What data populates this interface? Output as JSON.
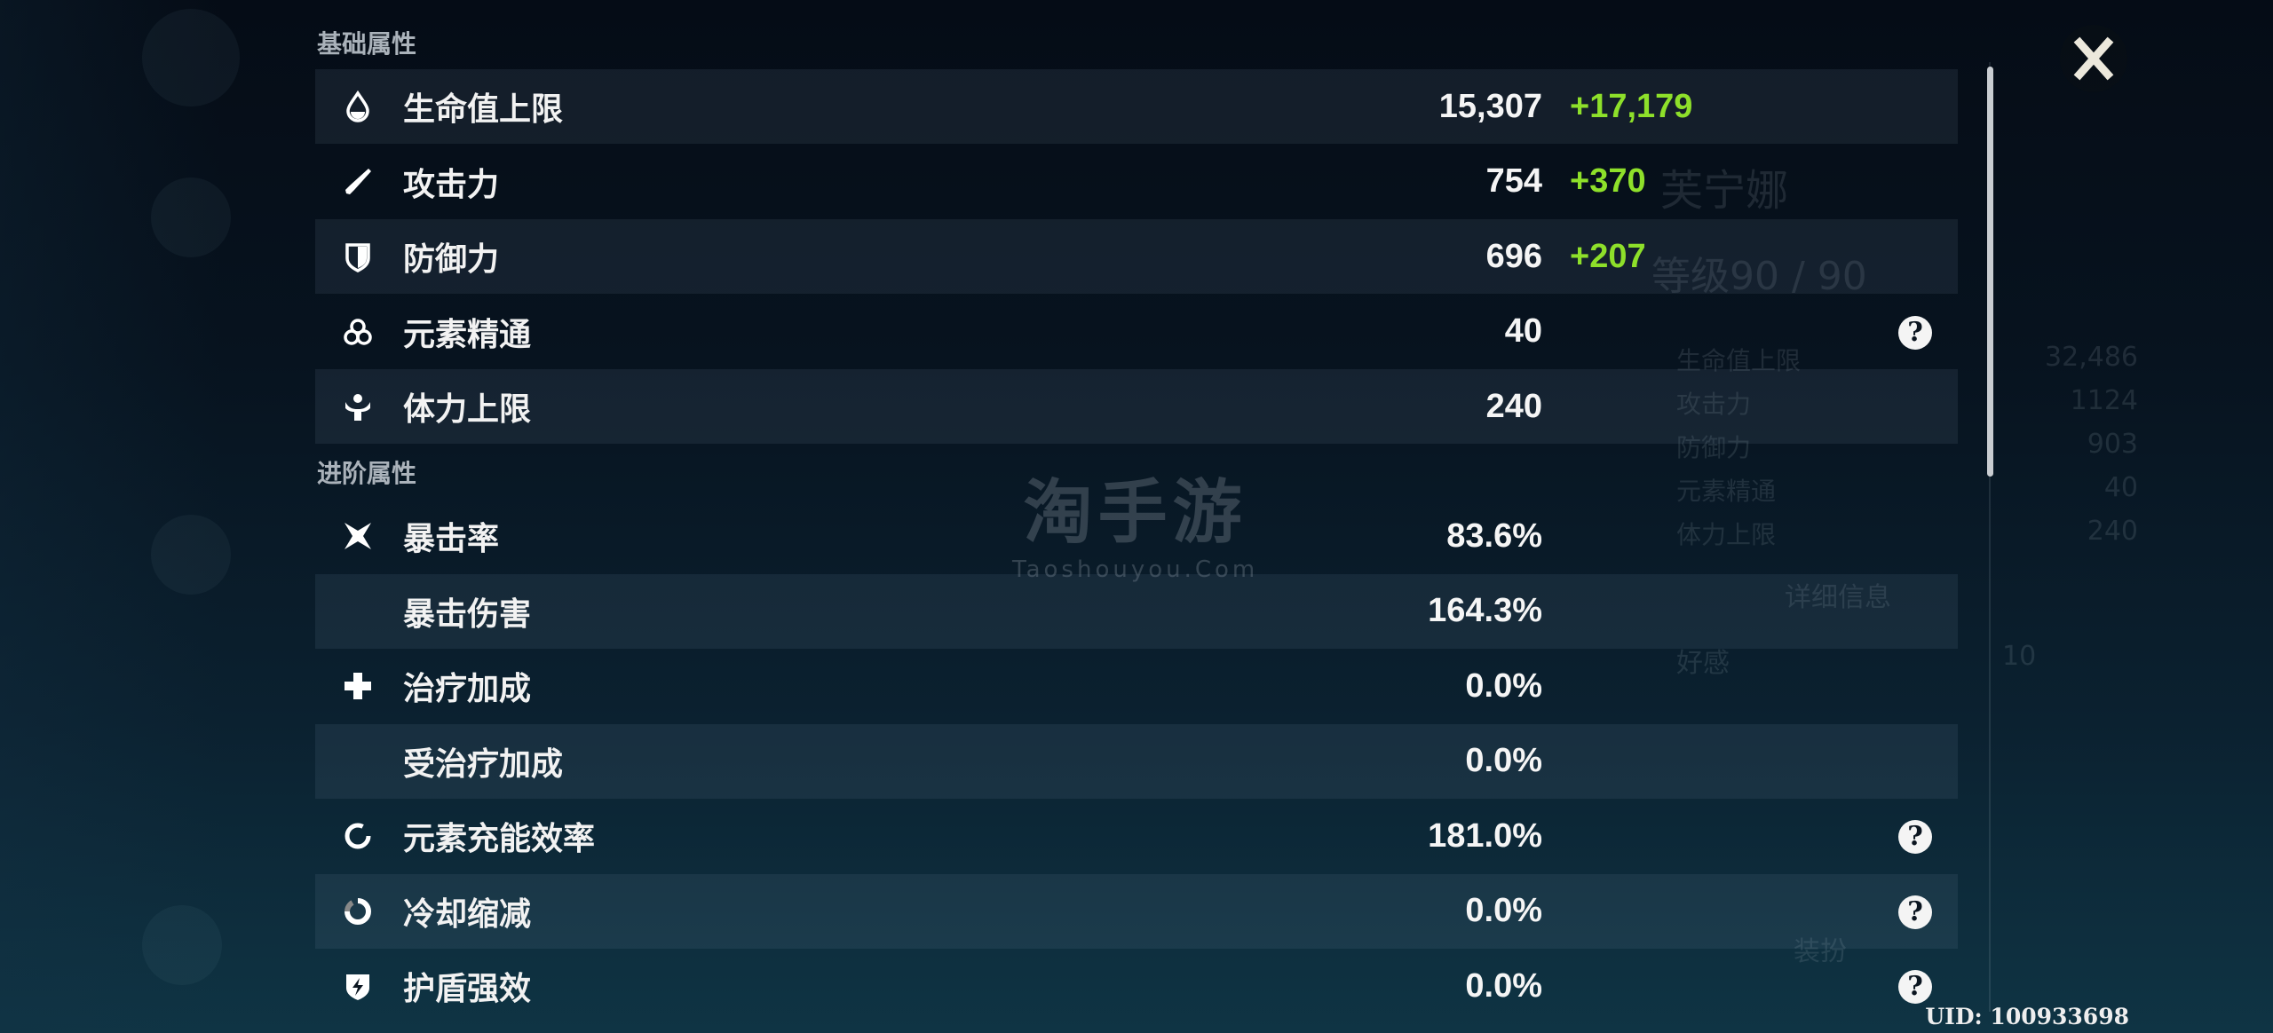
{
  "colors": {
    "bonus": "#8ee02a",
    "text": "#f2f2f2",
    "section": "#aab2ba",
    "background": "#07131f"
  },
  "watermark": {
    "cn": "淘手游",
    "en": "Taoshouyou.Com"
  },
  "background_panel": {
    "name": "芙宁娜",
    "level": "等级90 / 90",
    "stats": [
      {
        "label": "生命值上限",
        "value": "32,486"
      },
      {
        "label": "攻击力",
        "value": "1124"
      },
      {
        "label": "防御力",
        "value": "903"
      },
      {
        "label": "元素精通",
        "value": "40"
      },
      {
        "label": "体力上限",
        "value": "240"
      }
    ],
    "details_button": "详细信息",
    "friendship_label": "好感",
    "friendship_value": "10",
    "outfit_button": "装扮"
  },
  "sections": [
    {
      "title": "基础属性",
      "rows": [
        {
          "icon": "hp-drop-icon",
          "label": "生命值上限",
          "value": "15,307",
          "bonus": "+17,179",
          "help": false
        },
        {
          "icon": "sword-icon",
          "label": "攻击力",
          "value": "754",
          "bonus": "+370",
          "help": false
        },
        {
          "icon": "shield-icon",
          "label": "防御力",
          "value": "696",
          "bonus": "+207",
          "help": false
        },
        {
          "icon": "elemental-mastery-icon",
          "label": "元素精通",
          "value": "40",
          "bonus": "",
          "help": true
        },
        {
          "icon": "stamina-icon",
          "label": "体力上限",
          "value": "240",
          "bonus": "",
          "help": false
        }
      ]
    },
    {
      "title": "进阶属性",
      "rows": [
        {
          "icon": "crit-star-icon",
          "label": "暴击率",
          "value": "83.6%",
          "bonus": "",
          "help": false
        },
        {
          "icon": "",
          "label": "暴击伤害",
          "value": "164.3%",
          "bonus": "",
          "help": false
        },
        {
          "icon": "heal-cross-icon",
          "label": "治疗加成",
          "value": "0.0%",
          "bonus": "",
          "help": false
        },
        {
          "icon": "",
          "label": "受治疗加成",
          "value": "0.0%",
          "bonus": "",
          "help": false
        },
        {
          "icon": "energy-recharge-icon",
          "label": "元素充能效率",
          "value": "181.0%",
          "bonus": "",
          "help": true
        },
        {
          "icon": "cooldown-icon",
          "label": "冷却缩减",
          "value": "0.0%",
          "bonus": "",
          "help": true
        },
        {
          "icon": "shield-strength-icon",
          "label": "护盾强效",
          "value": "0.0%",
          "bonus": "",
          "help": true
        }
      ]
    }
  ],
  "help_glyph": "?",
  "uid": "UID: 100933698"
}
